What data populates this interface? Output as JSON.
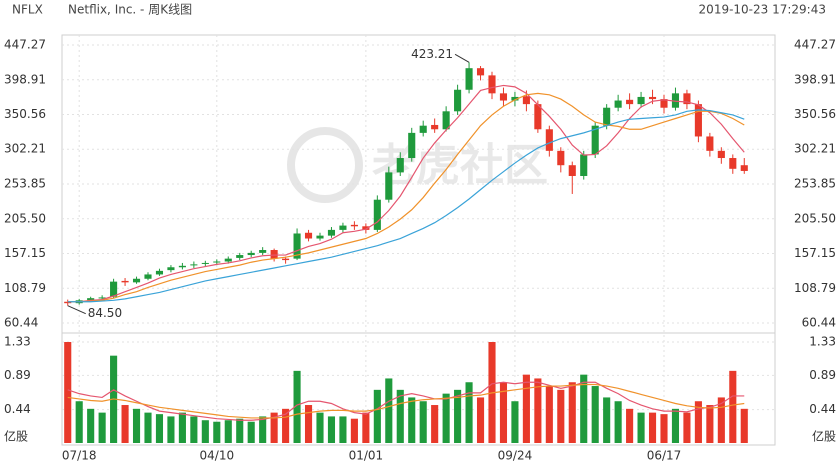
{
  "chart_data": {
    "type": "candlestick",
    "title": "NFLX",
    "subtitle": "Netflix, Inc. - 周K线图",
    "timestamp": "2019-10-23 17:29:43",
    "watermark": "老虎社区",
    "up_color": "#1f9a3c",
    "down_color": "#e8392a",
    "grid": true,
    "categories": [
      null,
      "07/18",
      null,
      null,
      null,
      null,
      null,
      null,
      null,
      null,
      null,
      null,
      null,
      "04/10",
      null,
      null,
      null,
      null,
      null,
      null,
      null,
      null,
      null,
      null,
      null,
      null,
      "01/01",
      null,
      null,
      null,
      null,
      null,
      null,
      null,
      null,
      null,
      null,
      null,
      null,
      "09/24",
      null,
      null,
      null,
      null,
      null,
      null,
      null,
      null,
      null,
      null,
      null,
      null,
      "06/17",
      null,
      null,
      null,
      null,
      null,
      null,
      null
    ],
    "open": [
      90,
      88,
      92,
      95,
      97,
      119,
      117,
      122,
      128,
      134,
      138,
      141,
      143,
      145,
      146,
      151,
      155,
      158,
      162,
      150,
      150,
      186,
      178,
      182,
      190,
      197,
      195,
      190,
      232,
      270,
      290,
      325,
      336,
      330,
      355,
      385,
      415,
      405,
      380,
      370,
      376,
      365,
      330,
      300,
      280,
      265,
      295,
      335,
      360,
      371,
      365,
      375,
      372,
      360,
      380,
      365,
      320,
      300,
      290,
      280
    ],
    "high": [
      93,
      94,
      97,
      99,
      122,
      123,
      125,
      131,
      136,
      141,
      144,
      146,
      147,
      149,
      153,
      158,
      161,
      166,
      164,
      153,
      192,
      190,
      186,
      194,
      200,
      202,
      199,
      238,
      278,
      298,
      332,
      342,
      345,
      362,
      392,
      423.21,
      418,
      410,
      388,
      382,
      384,
      370,
      335,
      305,
      285,
      300,
      340,
      365,
      378,
      380,
      382,
      385,
      378,
      388,
      385,
      370,
      325,
      305,
      295,
      290
    ],
    "low": [
      84.5,
      86,
      90,
      93,
      95,
      112,
      115,
      120,
      126,
      131,
      135,
      137,
      139,
      141,
      143,
      148,
      152,
      155,
      146,
      143,
      148,
      174,
      175,
      179,
      186,
      190,
      185,
      187,
      228,
      265,
      285,
      320,
      325,
      327,
      350,
      380,
      398,
      372,
      362,
      362,
      355,
      325,
      292,
      270,
      240,
      260,
      290,
      330,
      355,
      358,
      360,
      365,
      352,
      356,
      358,
      312,
      292,
      282,
      268,
      268
    ],
    "close": [
      88,
      92,
      95,
      96,
      118,
      117,
      122,
      128,
      133,
      138,
      140,
      142,
      144,
      146,
      150,
      155,
      158,
      162,
      150,
      148,
      185,
      178,
      182,
      190,
      196,
      195,
      190,
      232,
      270,
      290,
      325,
      335,
      330,
      355,
      385,
      415,
      405,
      380,
      370,
      375,
      365,
      330,
      300,
      280,
      265,
      295,
      335,
      360,
      370,
      365,
      375,
      372,
      360,
      380,
      365,
      320,
      300,
      290,
      275,
      272
    ],
    "ylim": [
      60.44,
      447.27
    ],
    "yticks": [
      60.44,
      108.79,
      157.15,
      {
        "value": 205.5,
        "label": "205.50"
      },
      253.85,
      302.21,
      350.56,
      398.91,
      447.27
    ],
    "annotations": [
      {
        "value": 423.21,
        "label": "423.21"
      },
      {
        "value": 84.5,
        "label": "84.50"
      }
    ],
    "series": [
      {
        "color": "#e5566f",
        "values": [
          90,
          90,
          92,
          93,
          98,
          104,
          110,
          116,
          123,
          128,
          132,
          136,
          139,
          142,
          144,
          147,
          151,
          154,
          155,
          155,
          161,
          167,
          171,
          177,
          186,
          188,
          191,
          201,
          217,
          237,
          263,
          290,
          311,
          329,
          346,
          365,
          384,
          388,
          391,
          389,
          380,
          364,
          348,
          330,
          308,
          294,
          295,
          307,
          325,
          345,
          361,
          369,
          371,
          369,
          368,
          364,
          353,
          337,
          317,
          298
        ]
      },
      {
        "color": "#f0922b",
        "values": [
          90,
          90,
          91,
          92,
          95,
          100,
          104,
          110,
          115,
          120,
          124,
          128,
          132,
          135,
          138,
          141,
          145,
          148,
          150,
          152,
          155,
          158,
          162,
          166,
          170,
          174,
          178,
          185,
          194,
          205,
          218,
          235,
          255,
          274,
          295,
          315,
          335,
          350,
          362,
          371,
          378,
          380,
          378,
          372,
          362,
          350,
          340,
          336,
          334,
          330,
          330,
          335,
          340,
          345,
          350,
          355,
          355,
          352,
          345,
          336
        ]
      },
      {
        "color": "#3aa3d8",
        "values": [
          90,
          90,
          90,
          91,
          92,
          94,
          97,
          100,
          103,
          107,
          111,
          115,
          119,
          122,
          125,
          128,
          131,
          134,
          137,
          140,
          143,
          146,
          149,
          152,
          156,
          160,
          164,
          168,
          173,
          178,
          185,
          192,
          200,
          210,
          221,
          233,
          246,
          259,
          271,
          283,
          294,
          304,
          311,
          317,
          321,
          325,
          330,
          335,
          340,
          344,
          345,
          346,
          347,
          350,
          355,
          357,
          356,
          353,
          350,
          344
        ]
      }
    ],
    "volume": {
      "values": [
        1.33,
        0.55,
        0.45,
        0.4,
        1.15,
        0.5,
        0.45,
        0.4,
        0.38,
        0.35,
        0.4,
        0.35,
        0.3,
        0.28,
        0.3,
        0.32,
        0.28,
        0.35,
        0.4,
        0.45,
        0.95,
        0.5,
        0.4,
        0.35,
        0.35,
        0.32,
        0.4,
        0.7,
        0.85,
        0.7,
        0.6,
        0.55,
        0.5,
        0.65,
        0.7,
        0.8,
        0.6,
        1.33,
        0.8,
        0.55,
        0.9,
        0.85,
        0.75,
        0.7,
        0.8,
        0.9,
        0.75,
        0.6,
        0.55,
        0.45,
        0.4,
        0.4,
        0.38,
        0.45,
        0.4,
        0.55,
        0.5,
        0.6,
        0.95,
        0.45
      ],
      "ylim": [
        0,
        1.33
      ],
      "yticks": [
        {
          "value": 0,
          "label": "亿股"
        },
        0.44,
        0.89,
        1.33
      ],
      "series": [
        {
          "color": "#e5566f",
          "values": [
            0.7,
            0.65,
            0.62,
            0.6,
            0.7,
            0.62,
            0.55,
            0.48,
            0.42,
            0.4,
            0.38,
            0.36,
            0.34,
            0.32,
            0.31,
            0.3,
            0.3,
            0.31,
            0.34,
            0.38,
            0.5,
            0.55,
            0.55,
            0.52,
            0.45,
            0.4,
            0.38,
            0.45,
            0.55,
            0.62,
            0.65,
            0.62,
            0.58,
            0.58,
            0.62,
            0.66,
            0.66,
            0.78,
            0.8,
            0.78,
            0.8,
            0.8,
            0.76,
            0.72,
            0.75,
            0.8,
            0.8,
            0.72,
            0.65,
            0.56,
            0.5,
            0.45,
            0.42,
            0.42,
            0.41,
            0.45,
            0.47,
            0.52,
            0.62,
            0.62
          ]
        },
        {
          "color": "#f0922b",
          "values": [
            0.6,
            0.58,
            0.56,
            0.55,
            0.58,
            0.56,
            0.53,
            0.5,
            0.47,
            0.45,
            0.43,
            0.41,
            0.39,
            0.37,
            0.35,
            0.34,
            0.33,
            0.33,
            0.33,
            0.34,
            0.38,
            0.4,
            0.42,
            0.43,
            0.43,
            0.42,
            0.42,
            0.44,
            0.48,
            0.52,
            0.55,
            0.57,
            0.58,
            0.59,
            0.6,
            0.62,
            0.63,
            0.66,
            0.68,
            0.7,
            0.72,
            0.74,
            0.75,
            0.75,
            0.76,
            0.77,
            0.77,
            0.75,
            0.72,
            0.68,
            0.64,
            0.6,
            0.56,
            0.52,
            0.49,
            0.47,
            0.46,
            0.47,
            0.5,
            0.52
          ]
        }
      ]
    }
  }
}
